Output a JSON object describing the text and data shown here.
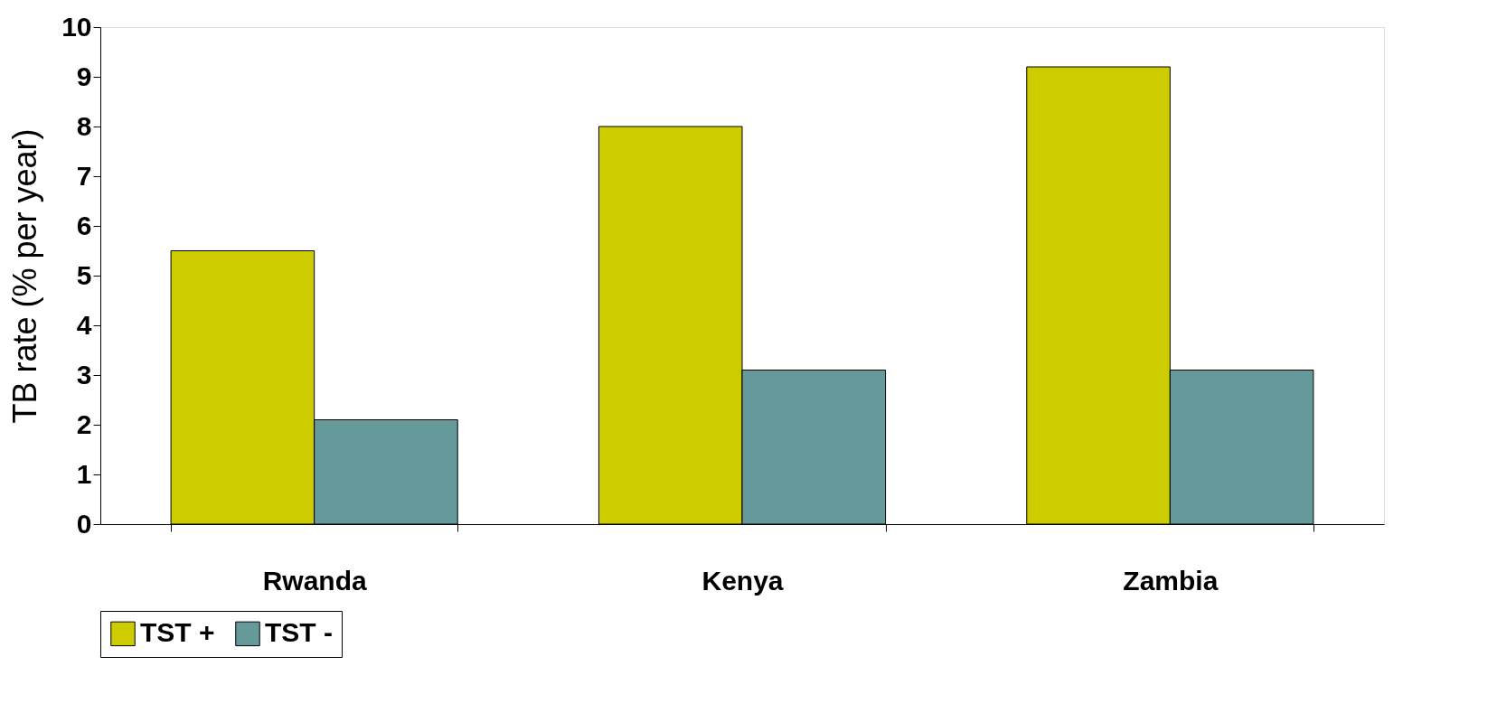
{
  "chart_data": {
    "type": "bar",
    "ylabel": "TB rate (% per year)",
    "categories": [
      "Rwanda",
      "Kenya",
      "Zambia"
    ],
    "series": [
      {
        "name": "TST +",
        "color": "#cccc00",
        "values": [
          5.5,
          8.0,
          9.2
        ]
      },
      {
        "name": "TST -",
        "color": "#669999",
        "values": [
          2.1,
          3.1,
          3.1
        ]
      }
    ],
    "ylim": [
      0,
      10
    ],
    "yticks": [
      0,
      1,
      2,
      3,
      4,
      5,
      6,
      7,
      8,
      9,
      10
    ],
    "grid": false,
    "legend": "bottom"
  }
}
